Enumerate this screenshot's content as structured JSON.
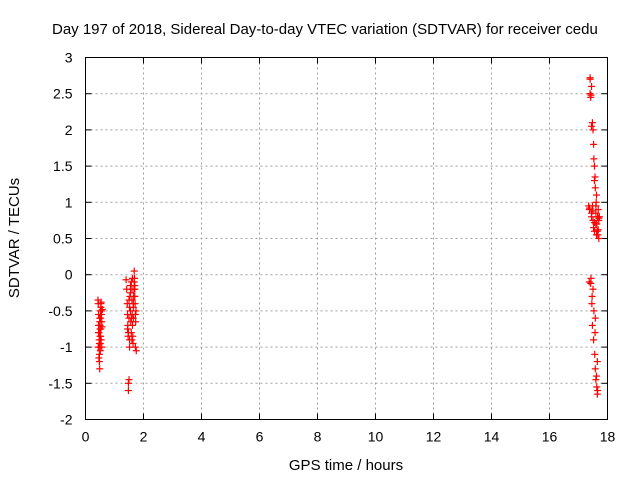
{
  "chart_data": {
    "type": "scatter",
    "title": "Day 197 of 2018, Sidereal Day-to-day VTEC variation (SDTVAR) for receiver cedu",
    "xlabel": "GPS time / hours",
    "ylabel": "SDTVAR / TECUs",
    "xlim": [
      0,
      18
    ],
    "ylim": [
      -2,
      3
    ],
    "xticks": [
      "0",
      "2",
      "4",
      "6",
      "8",
      "10",
      "12",
      "14",
      "16",
      "18"
    ],
    "yticks": [
      "3",
      "2.5",
      "2",
      "1.5",
      "1",
      "0.5",
      "0",
      "-0.5",
      "-1",
      "-1.5",
      "-2"
    ],
    "grid": true,
    "marker": "plus",
    "color": "#ff0000",
    "series": [
      {
        "x": [
          0.43,
          0.44,
          0.45,
          0.45,
          0.46,
          0.47,
          0.47,
          0.48,
          0.48,
          0.49,
          0.49,
          0.5,
          0.5,
          0.51,
          0.51,
          0.52,
          0.52,
          0.53,
          0.53,
          0.54,
          0.55,
          0.55,
          0.56,
          0.57,
          0.58,
          0.44,
          0.46,
          0.48,
          0.5,
          0.52,
          0.54,
          0.56,
          0.45,
          0.49,
          0.53
        ],
        "y": [
          -0.35,
          -0.4,
          -0.55,
          -0.7,
          -0.8,
          -0.9,
          -1.0,
          -1.1,
          -1.2,
          -1.3,
          -0.65,
          -0.75,
          -0.85,
          -0.95,
          -1.05,
          -0.6,
          -0.5,
          -0.45,
          -0.4,
          -0.38,
          -0.5,
          -0.55,
          -0.65,
          -0.72,
          -0.48,
          -1.0,
          -1.15,
          -0.95,
          -0.7,
          -0.85,
          -0.9,
          -1.0,
          -0.8,
          -0.6,
          -0.75
        ]
      },
      {
        "x": [
          1.4,
          1.42,
          1.44,
          1.45,
          1.46,
          1.47,
          1.48,
          1.48,
          1.5,
          1.5,
          1.52,
          1.52,
          1.53,
          1.55,
          1.55,
          1.56,
          1.58,
          1.58,
          1.6,
          1.6,
          1.61,
          1.62,
          1.63,
          1.64,
          1.65,
          1.65,
          1.66,
          1.67,
          1.68,
          1.68,
          1.69,
          1.7,
          1.7,
          1.71,
          1.72,
          1.72,
          1.73,
          1.74,
          1.75,
          1.45,
          1.5,
          1.55,
          1.6,
          1.65,
          1.7,
          1.62,
          1.58,
          1.52,
          1.48
        ],
        "y": [
          -0.07,
          -0.2,
          -0.4,
          -0.55,
          -0.7,
          -0.85,
          -1.5,
          -1.6,
          -1.45,
          -0.6,
          -0.45,
          -0.9,
          -0.3,
          -0.15,
          -0.5,
          -0.65,
          -0.8,
          -0.1,
          -0.2,
          -0.35,
          -0.55,
          -0.7,
          -0.85,
          -0.95,
          -0.6,
          -0.45,
          -0.3,
          -0.2,
          -0.1,
          0.05,
          -0.05,
          -0.15,
          -0.3,
          -0.4,
          -0.55,
          -1.0,
          -0.65,
          -0.5,
          -1.05,
          -0.75,
          -0.35,
          -0.25,
          -0.9,
          -0.4,
          -0.2,
          -0.05,
          -0.6,
          -1.0,
          -0.8
        ]
      },
      {
        "x": [
          17.35,
          17.37,
          17.38,
          17.4,
          17.4,
          17.42,
          17.43,
          17.45,
          17.45,
          17.46,
          17.48,
          17.48,
          17.5,
          17.5,
          17.52,
          17.52,
          17.53,
          17.55,
          17.55,
          17.56,
          17.57,
          17.58,
          17.58,
          17.6,
          17.6,
          17.61,
          17.62,
          17.63,
          17.63,
          17.65,
          17.65,
          17.66,
          17.67,
          17.68,
          17.7,
          17.7,
          17.72,
          17.4,
          17.42,
          17.45,
          17.48,
          17.5,
          17.52,
          17.55,
          17.58,
          17.6,
          17.62,
          17.65,
          17.68,
          17.5,
          17.55,
          17.6,
          17.45,
          17.38,
          17.43,
          17.47,
          17.53,
          17.57,
          17.62,
          17.66,
          17.7
        ],
        "y": [
          0.95,
          -0.1,
          0.9,
          2.72,
          2.5,
          -0.12,
          2.48,
          2.6,
          0.8,
          -0.4,
          2.1,
          -0.7,
          2.0,
          0.75,
          1.8,
          -0.9,
          1.6,
          1.5,
          0.6,
          -1.1,
          1.35,
          1.2,
          -1.3,
          0.85,
          -1.45,
          1.0,
          0.55,
          0.7,
          -1.55,
          0.6,
          -1.65,
          0.8,
          0.55,
          0.9,
          0.5,
          0.75,
          0.8,
          2.7,
          2.45,
          2.05,
          0.95,
          -0.2,
          0.65,
          1.3,
          -0.6,
          0.7,
          1.1,
          -1.2,
          0.62,
          0.88,
          0.72,
          0.95,
          0.85,
          0.92,
          -0.05,
          -0.3,
          -0.5,
          -0.8,
          -1.4,
          -1.6,
          0.78
        ]
      }
    ]
  }
}
